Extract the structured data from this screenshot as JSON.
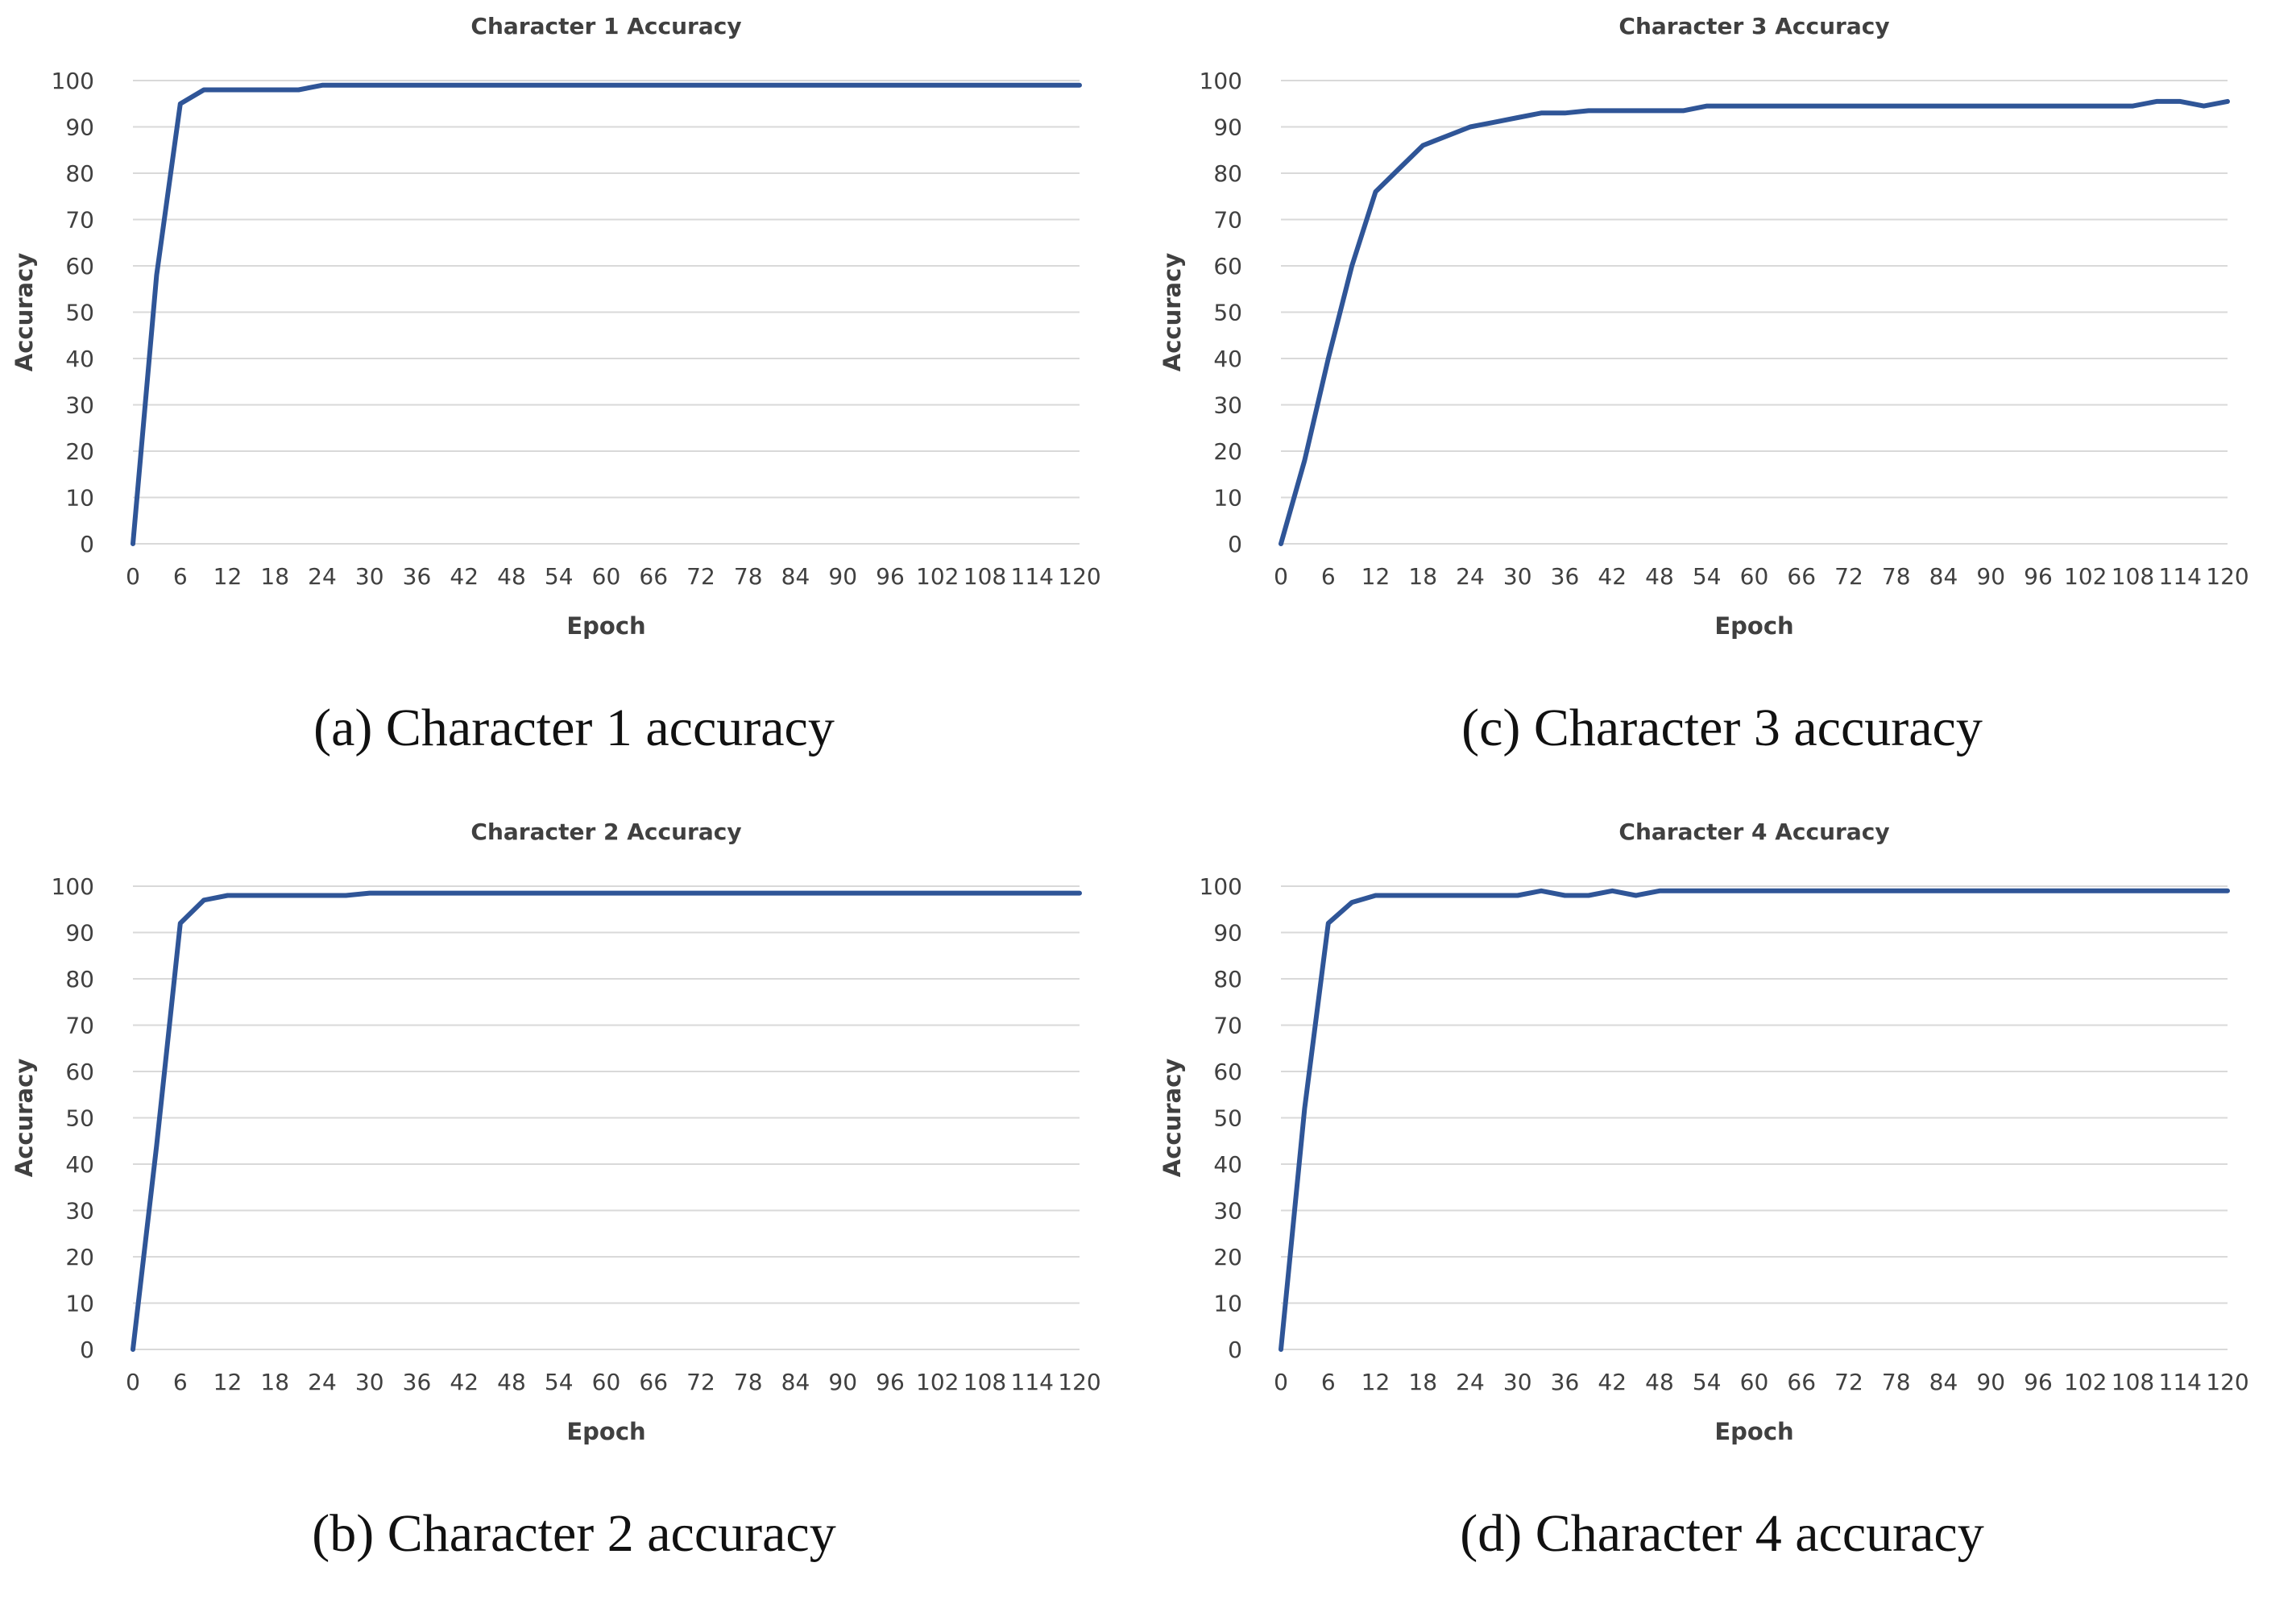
{
  "chart_data": [
    {
      "panel": "a",
      "type": "line",
      "title": "Character 1 Accuracy",
      "xlabel": "Epoch",
      "ylabel": "Accuracy",
      "caption": "(a) Character 1 accuracy",
      "ylim": [
        0,
        100
      ],
      "grid": true,
      "legend": "none",
      "y_ticks": [
        "0",
        "10",
        "20",
        "30",
        "40",
        "50",
        "60",
        "70",
        "80",
        "90",
        "100"
      ],
      "x_ticks": [
        "0",
        "6",
        "12",
        "18",
        "24",
        "30",
        "36",
        "42",
        "48",
        "54",
        "60",
        "66",
        "72",
        "78",
        "84",
        "90",
        "96",
        "102",
        "108",
        "114",
        "120"
      ],
      "series": [
        {
          "x": [
            0,
            3,
            6,
            9,
            12,
            15,
            18,
            21,
            24,
            30,
            120
          ],
          "values": [
            0,
            58,
            95,
            98,
            98,
            98,
            98,
            98,
            99,
            99,
            99
          ]
        }
      ]
    },
    {
      "panel": "c",
      "type": "line",
      "title": "Character 3 Accuracy",
      "xlabel": "Epoch",
      "ylabel": "Accuracy",
      "caption": "(c) Character 3 accuracy",
      "ylim": [
        0,
        100
      ],
      "grid": true,
      "legend": "none",
      "y_ticks": [
        "0",
        "10",
        "20",
        "30",
        "40",
        "50",
        "60",
        "70",
        "80",
        "90",
        "100"
      ],
      "x_ticks": [
        "0",
        "6",
        "12",
        "18",
        "24",
        "30",
        "36",
        "42",
        "48",
        "54",
        "60",
        "66",
        "72",
        "78",
        "84",
        "90",
        "96",
        "102",
        "108",
        "114",
        "120"
      ],
      "series": [
        {
          "x": [
            0,
            3,
            6,
            9,
            12,
            15,
            18,
            21,
            24,
            27,
            30,
            33,
            36,
            39,
            42,
            45,
            48,
            51,
            54,
            60,
            66,
            72,
            78,
            84,
            90,
            96,
            102,
            105,
            108,
            111,
            114,
            117,
            120
          ],
          "values": [
            0,
            18,
            40,
            60,
            76,
            81,
            86,
            88,
            90,
            91,
            92,
            93,
            93,
            93.5,
            93.5,
            93.5,
            93.5,
            93.5,
            94.5,
            94.5,
            94.5,
            94.5,
            94.5,
            94.5,
            94.5,
            94.5,
            94.5,
            94.5,
            94.5,
            95.5,
            95.5,
            94.5,
            95.5
          ]
        }
      ]
    },
    {
      "panel": "b",
      "type": "line",
      "title": "Character 2 Accuracy",
      "xlabel": "Epoch",
      "ylabel": "Accuracy",
      "caption": "(b) Character 2 accuracy",
      "ylim": [
        0,
        100
      ],
      "grid": true,
      "legend": "none",
      "y_ticks": [
        "0",
        "10",
        "20",
        "30",
        "40",
        "50",
        "60",
        "70",
        "80",
        "90",
        "100"
      ],
      "x_ticks": [
        "0",
        "6",
        "12",
        "18",
        "24",
        "30",
        "36",
        "42",
        "48",
        "54",
        "60",
        "66",
        "72",
        "78",
        "84",
        "90",
        "96",
        "102",
        "108",
        "114",
        "120"
      ],
      "series": [
        {
          "x": [
            0,
            3,
            6,
            9,
            12,
            18,
            24,
            27,
            30,
            36,
            120
          ],
          "values": [
            0,
            44,
            92,
            97,
            98,
            98,
            98,
            98,
            98.5,
            98.5,
            98.5
          ]
        }
      ]
    },
    {
      "panel": "d",
      "type": "line",
      "title": "Character 4 Accuracy",
      "xlabel": "Epoch",
      "ylabel": "Accuracy",
      "caption": "(d) Character 4 accuracy",
      "ylim": [
        0,
        100
      ],
      "grid": true,
      "legend": "none",
      "y_ticks": [
        "0",
        "10",
        "20",
        "30",
        "40",
        "50",
        "60",
        "70",
        "80",
        "90",
        "100"
      ],
      "x_ticks": [
        "0",
        "6",
        "12",
        "18",
        "24",
        "30",
        "36",
        "42",
        "48",
        "54",
        "60",
        "66",
        "72",
        "78",
        "84",
        "90",
        "96",
        "102",
        "108",
        "114",
        "120"
      ],
      "series": [
        {
          "x": [
            0,
            3,
            6,
            9,
            12,
            15,
            18,
            21,
            24,
            27,
            30,
            33,
            36,
            39,
            42,
            45,
            48,
            51,
            54,
            60,
            120
          ],
          "values": [
            0,
            52,
            92,
            96.5,
            98,
            98,
            98,
            98,
            98,
            98,
            98,
            99,
            98,
            98,
            99,
            98,
            99,
            99,
            99,
            99,
            99
          ]
        }
      ]
    }
  ]
}
